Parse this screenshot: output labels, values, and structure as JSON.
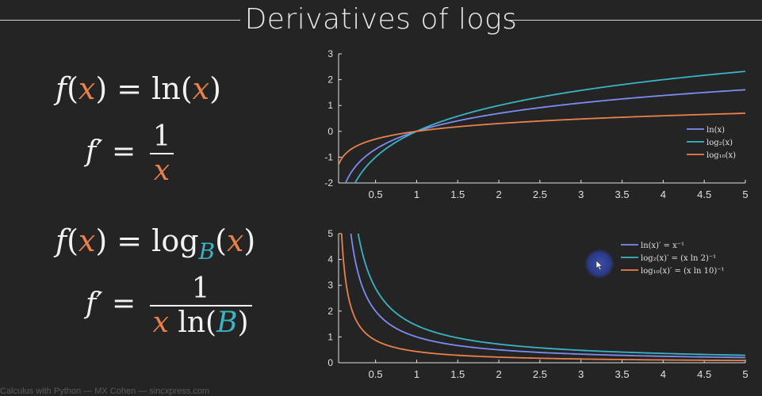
{
  "slide": {
    "title": "Derivatives of logs",
    "footer": "Calculus with Python — MX Cohen — sincxpress.com"
  },
  "formulas": {
    "f1_lhs": "f",
    "f1_var": "x",
    "f1_eq_fn": "ln",
    "f2_lhs": "f′",
    "f2_num": "1",
    "f2_den": "x",
    "f3_fn": "log",
    "f3_base": "B",
    "f4_num": "1",
    "f4_den_var": "x",
    "f4_den_fn": "ln",
    "f4_den_base": "B"
  },
  "colors": {
    "ln": "#7c8cf0",
    "log2": "#3ab4c4",
    "log10": "#e8814a",
    "axis": "#e0e0e0"
  },
  "chart_data": [
    {
      "type": "line",
      "title": "",
      "xlabel": "",
      "ylabel": "",
      "xlim": [
        0.05,
        5
      ],
      "ylim": [
        -2,
        3
      ],
      "xticks": [
        "0.5",
        "1",
        "1.5",
        "2",
        "2.5",
        "3",
        "3.5",
        "4",
        "4.5",
        "5"
      ],
      "yticks": [
        "-2",
        "-1",
        "0",
        "1",
        "2",
        "3"
      ],
      "legend_position": "right",
      "series": [
        {
          "name": "ln(x)",
          "function": "ln",
          "color": "#7c8cf0",
          "x": [
            0.135,
            0.25,
            0.5,
            1,
            1.5,
            2,
            2.5,
            3,
            3.5,
            4,
            4.5,
            5
          ],
          "y": [
            -2.0,
            -1.386,
            -0.693,
            0,
            0.405,
            0.693,
            0.916,
            1.099,
            1.253,
            1.386,
            1.504,
            1.609
          ]
        },
        {
          "name": "log₂(x)",
          "function": "log2",
          "color": "#3ab4c4",
          "x": [
            0.25,
            0.5,
            1,
            1.5,
            2,
            2.5,
            3,
            3.5,
            4,
            4.5,
            5
          ],
          "y": [
            -2.0,
            -1.0,
            0,
            0.585,
            1.0,
            1.322,
            1.585,
            1.807,
            2.0,
            2.17,
            2.322
          ]
        },
        {
          "name": "log₁₀(x)",
          "function": "log10",
          "color": "#e8814a",
          "x": [
            0.01,
            0.05,
            0.1,
            0.25,
            0.5,
            1,
            1.5,
            2,
            2.5,
            3,
            3.5,
            4,
            4.5,
            5
          ],
          "y": [
            -2.0,
            -1.301,
            -1.0,
            -0.602,
            -0.301,
            0,
            0.176,
            0.301,
            0.398,
            0.477,
            0.544,
            0.602,
            0.653,
            0.699
          ]
        }
      ]
    },
    {
      "type": "line",
      "title": "",
      "xlabel": "",
      "ylabel": "",
      "xlim": [
        0.05,
        5
      ],
      "ylim": [
        0,
        5
      ],
      "xticks": [
        "0.5",
        "1",
        "1.5",
        "2",
        "2.5",
        "3",
        "3.5",
        "4",
        "4.5",
        "5"
      ],
      "yticks": [
        "0",
        "1",
        "2",
        "3",
        "4",
        "5"
      ],
      "legend_position": "top-right",
      "series": [
        {
          "name": "ln(x)′ = x⁻¹",
          "function": "inv_ln",
          "color": "#7c8cf0",
          "x": [
            0.2,
            0.25,
            0.5,
            1,
            1.5,
            2,
            3,
            4,
            5
          ],
          "y": [
            5.0,
            4.0,
            2.0,
            1.0,
            0.667,
            0.5,
            0.333,
            0.25,
            0.2
          ]
        },
        {
          "name": "log₂(x)′ = (x ln 2)⁻¹",
          "function": "inv_log2",
          "color": "#3ab4c4",
          "x": [
            0.289,
            0.5,
            1,
            1.5,
            2,
            3,
            4,
            5
          ],
          "y": [
            5.0,
            2.885,
            1.443,
            0.962,
            0.721,
            0.481,
            0.361,
            0.289
          ]
        },
        {
          "name": "log₁₀(x)′ = (x ln 10)⁻¹",
          "function": "inv_log10",
          "color": "#e8814a",
          "x": [
            0.087,
            0.25,
            0.5,
            1,
            1.5,
            2,
            3,
            4,
            5
          ],
          "y": [
            5.0,
            1.737,
            0.869,
            0.434,
            0.29,
            0.217,
            0.145,
            0.109,
            0.087
          ]
        }
      ]
    }
  ]
}
